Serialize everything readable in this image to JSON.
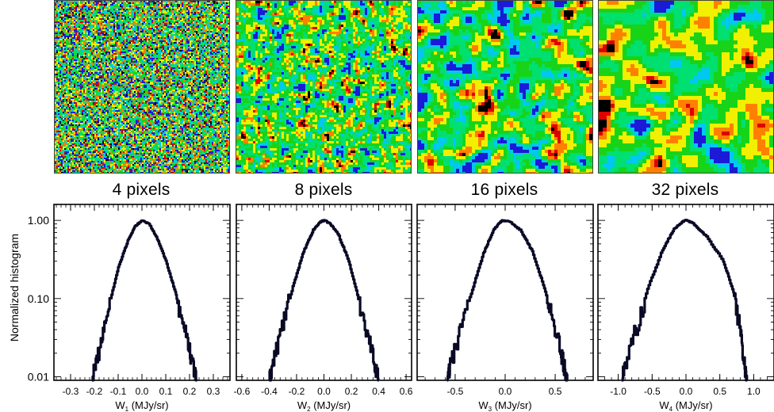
{
  "colors": {
    "curve": "#0a0a26",
    "map_palette": [
      "#1a1ad8",
      "#00c8f0",
      "#00e070",
      "#18d418",
      "#f0f000",
      "#ff8000",
      "#e00000",
      "#000000"
    ]
  },
  "panels": [
    {
      "scale_title": "4 pixels",
      "xlabel": "W",
      "sub": "1",
      "unit": " (MJy/sr)"
    },
    {
      "scale_title": "8 pixels",
      "xlabel": "W",
      "sub": "2",
      "unit": " (MJy/sr)"
    },
    {
      "scale_title": "16 pixels",
      "xlabel": "W",
      "sub": "3",
      "unit": " (MJy/sr)"
    },
    {
      "scale_title": "32 pixels",
      "xlabel": "W",
      "sub": "4",
      "unit": " (MJy/sr)"
    }
  ],
  "ylabel": "Normalized histogram",
  "chart_data": [
    {
      "type": "line",
      "title": "4 pixels",
      "xlabel": "W1 (MJy/sr)",
      "ylabel": "Normalized histogram",
      "xlim": [
        -0.37,
        0.37
      ],
      "ylim": [
        0.009,
        1.6
      ],
      "yscale": "log",
      "xticks": [
        -0.3,
        -0.2,
        -0.1,
        0.0,
        0.1,
        0.2,
        0.3
      ],
      "xticklabels": [
        "-0.3",
        "-0.2",
        "-0.1",
        "0.0",
        "0.1",
        "0.2",
        "0.3"
      ],
      "yticks": [
        1.0,
        0.1,
        0.01
      ],
      "yticklabels": [
        "1.00",
        "0.10",
        "0.01"
      ],
      "series": [
        {
          "x": [
            -0.21,
            -0.2,
            -0.17,
            -0.14,
            -0.1,
            -0.06,
            -0.03,
            0.0,
            0.03,
            0.06,
            0.1,
            0.14,
            0.17,
            0.2,
            0.22,
            0.23
          ],
          "y": [
            0.009,
            0.013,
            0.03,
            0.08,
            0.25,
            0.55,
            0.84,
            1.0,
            0.9,
            0.62,
            0.3,
            0.12,
            0.05,
            0.022,
            0.012,
            0.009
          ]
        }
      ]
    },
    {
      "type": "line",
      "title": "8 pixels",
      "xlabel": "W2 (MJy/sr)",
      "ylabel": "Normalized histogram",
      "xlim": [
        -0.64,
        0.64
      ],
      "ylim": [
        0.009,
        1.6
      ],
      "yscale": "log",
      "xticks": [
        -0.6,
        -0.4,
        -0.2,
        0.0,
        0.2,
        0.4,
        0.6
      ],
      "xticklabels": [
        "-0.6",
        "-0.4",
        "-0.2",
        "0.0",
        "0.2",
        "0.4",
        "0.6"
      ],
      "yticks": [
        1.0,
        0.1,
        0.01
      ],
      "yticklabels": [
        "1.00",
        "0.10",
        "0.01"
      ],
      "series": [
        {
          "x": [
            -0.4,
            -0.37,
            -0.3,
            -0.22,
            -0.15,
            -0.08,
            -0.03,
            0.0,
            0.04,
            0.1,
            0.18,
            0.25,
            0.32,
            0.37,
            0.4
          ],
          "y": [
            0.009,
            0.016,
            0.05,
            0.16,
            0.4,
            0.75,
            0.95,
            1.0,
            0.92,
            0.68,
            0.3,
            0.1,
            0.035,
            0.015,
            0.009
          ]
        }
      ]
    },
    {
      "type": "line",
      "title": "16 pixels",
      "xlabel": "W3 (MJy/sr)",
      "ylabel": "Normalized histogram",
      "xlim": [
        -0.88,
        0.88
      ],
      "ylim": [
        0.009,
        1.6
      ],
      "yscale": "log",
      "xticks": [
        -0.5,
        0.0,
        0.5
      ],
      "xticklabels": [
        "-0.5",
        "0.0",
        "0.5"
      ],
      "yticks": [
        1.0,
        0.1,
        0.01
      ],
      "yticklabels": [
        "1.00",
        "0.10",
        "0.01"
      ],
      "series": [
        {
          "x": [
            -0.58,
            -0.55,
            -0.45,
            -0.33,
            -0.22,
            -0.12,
            -0.05,
            -0.02,
            0.05,
            0.15,
            0.27,
            0.38,
            0.48,
            0.56,
            0.6,
            0.62
          ],
          "y": [
            0.009,
            0.014,
            0.04,
            0.13,
            0.38,
            0.75,
            0.95,
            1.0,
            0.95,
            0.75,
            0.4,
            0.15,
            0.05,
            0.02,
            0.012,
            0.009
          ]
        }
      ]
    },
    {
      "type": "line",
      "title": "32 pixels",
      "xlabel": "W4 (MJy/sr)",
      "ylabel": "Normalized histogram",
      "xlim": [
        -1.3,
        1.3
      ],
      "ylim": [
        0.009,
        1.6
      ],
      "yscale": "log",
      "xticks": [
        -1.0,
        -0.5,
        0.0,
        0.5,
        1.0
      ],
      "xticklabels": [
        "-1.0",
        "-0.5",
        "0.0",
        "0.5",
        "1.0"
      ],
      "yticks": [
        1.0,
        0.1,
        0.01
      ],
      "yticklabels": [
        "1.00",
        "0.10",
        "0.01"
      ],
      "series": [
        {
          "x": [
            -0.95,
            -0.9,
            -0.75,
            -0.55,
            -0.35,
            -0.18,
            -0.05,
            0.0,
            0.1,
            0.3,
            0.55,
            0.7,
            0.8,
            0.86,
            0.9
          ],
          "y": [
            0.009,
            0.014,
            0.04,
            0.15,
            0.42,
            0.78,
            0.97,
            1.0,
            0.92,
            0.62,
            0.3,
            0.12,
            0.04,
            0.015,
            0.009
          ]
        }
      ]
    }
  ]
}
